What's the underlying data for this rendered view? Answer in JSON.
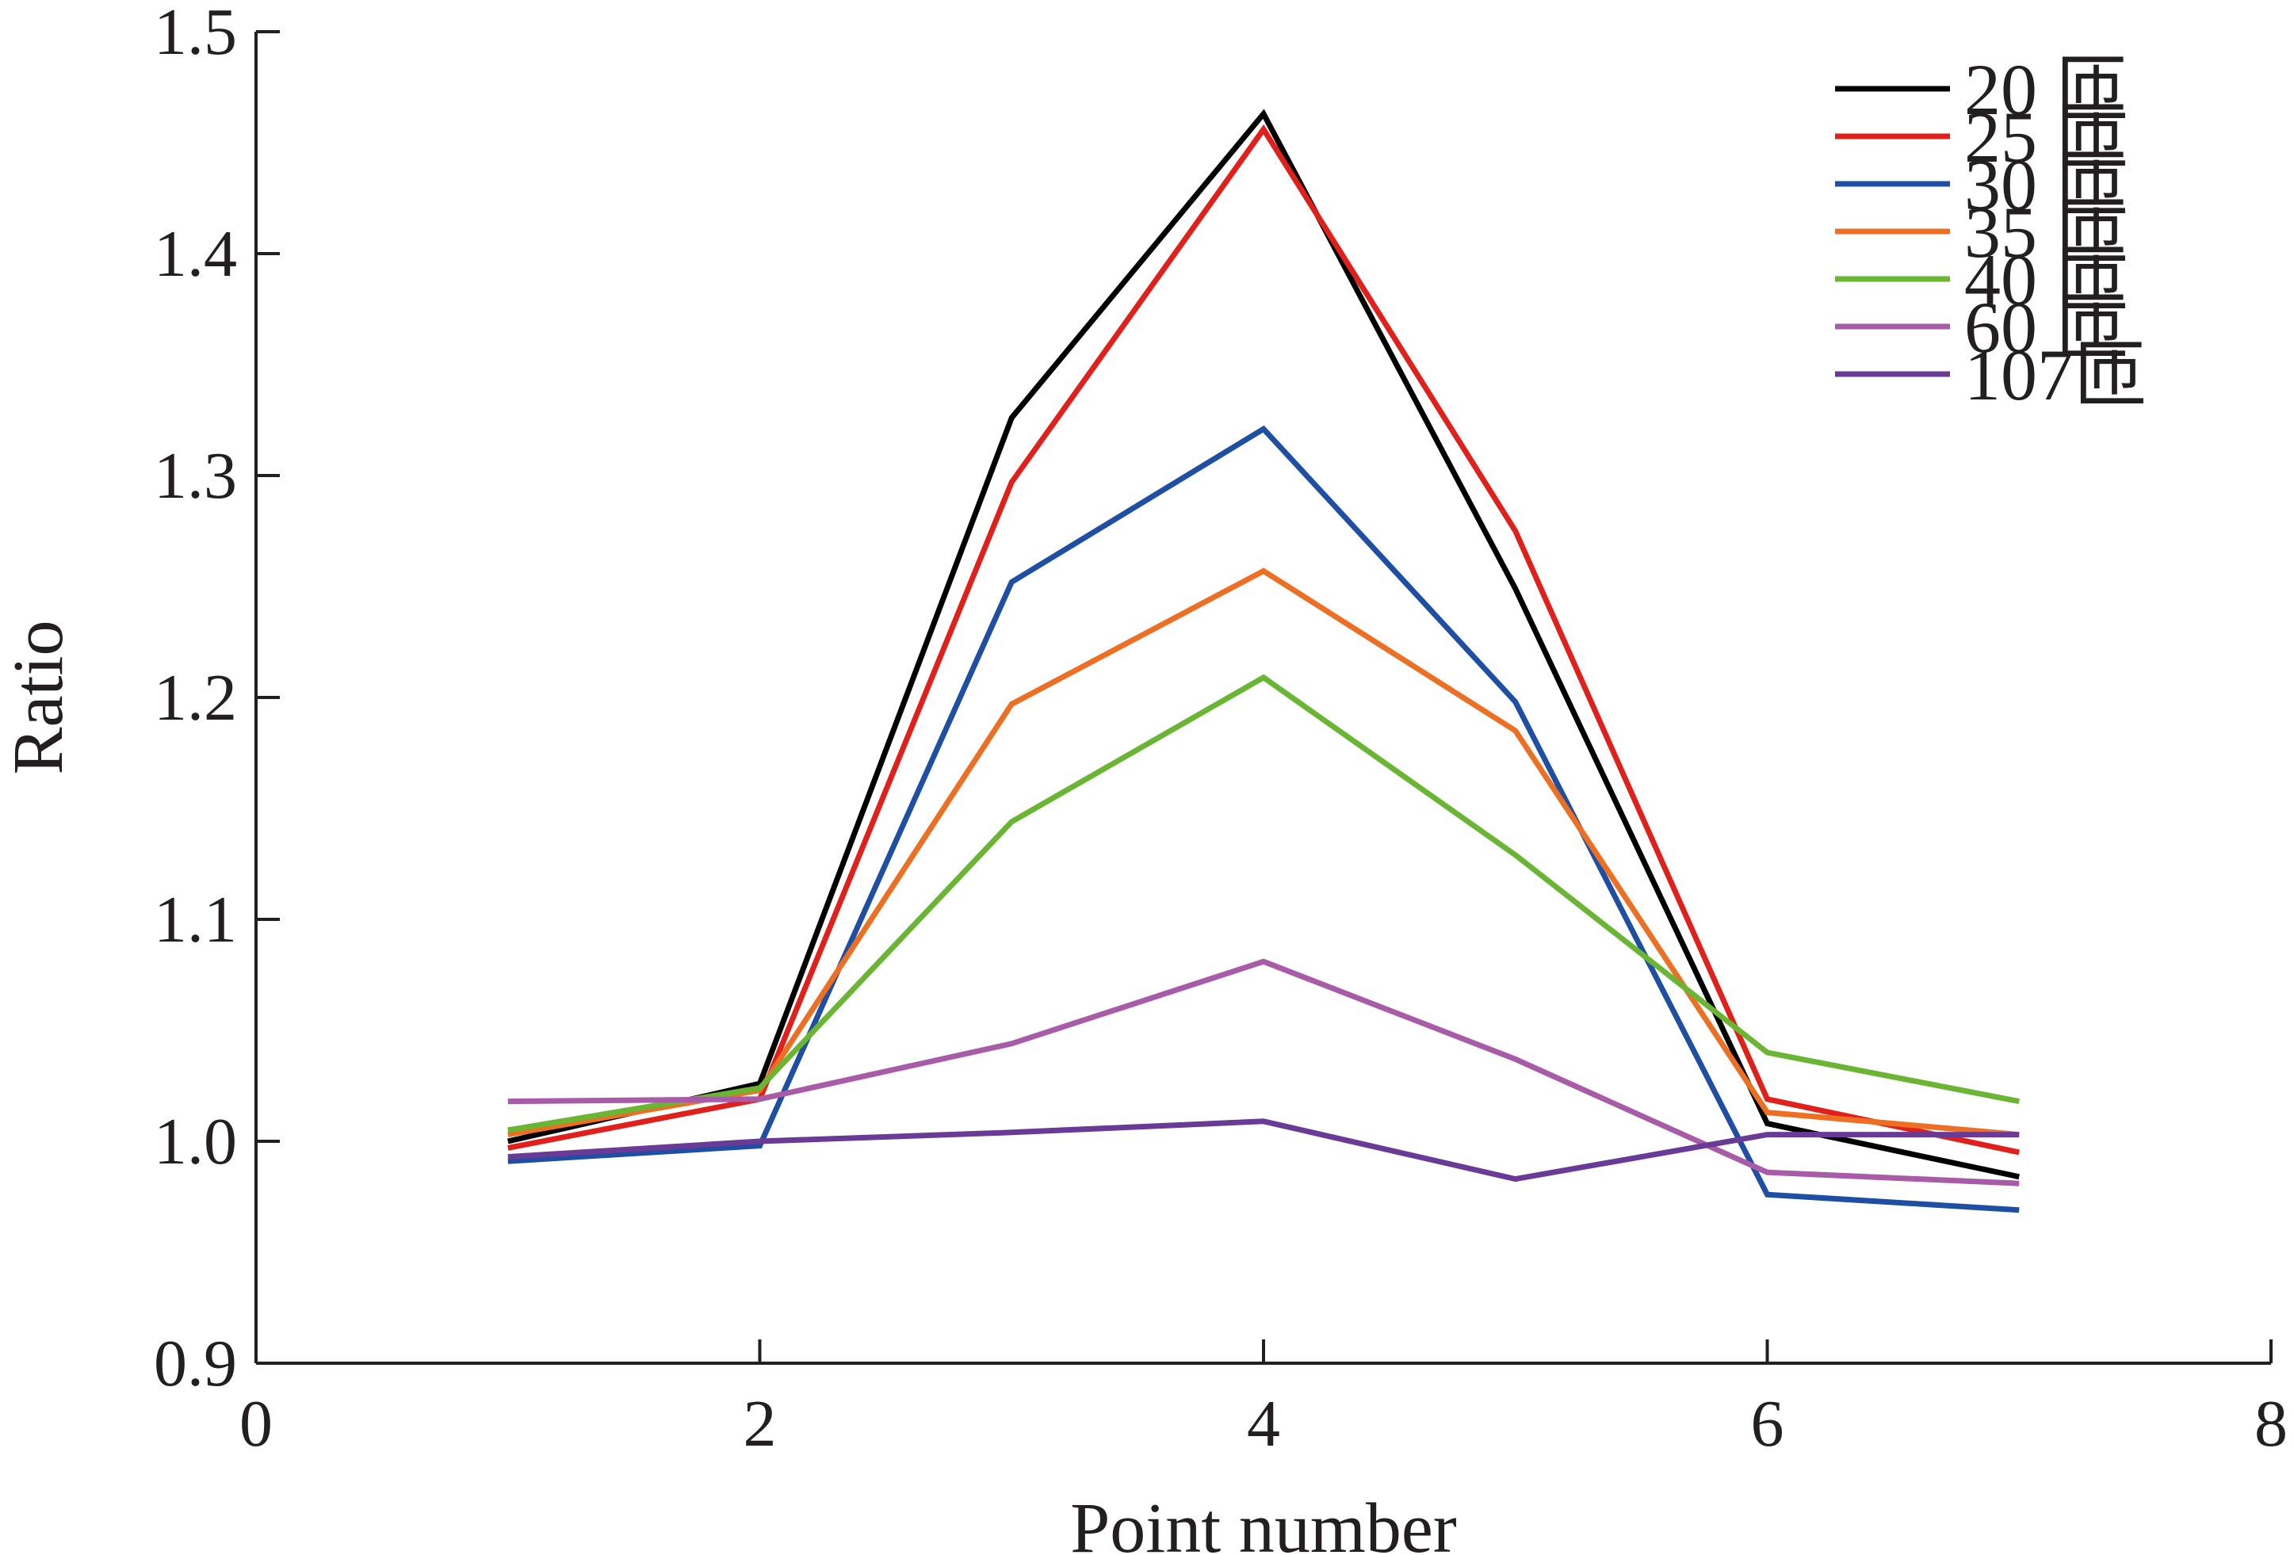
{
  "chart_data": {
    "type": "line",
    "title": "",
    "xlabel": "Point number",
    "ylabel": "Ratio",
    "xlim": [
      0,
      8
    ],
    "ylim": [
      0.9,
      1.5
    ],
    "xticks": [
      "0",
      "2",
      "4",
      "6",
      "8"
    ],
    "yticks": [
      "0.9",
      "1.0",
      "1.1",
      "1.2",
      "1.3",
      "1.4",
      "1.5"
    ],
    "grid": false,
    "legend_position": "top-right",
    "x": [
      1,
      2,
      3,
      4,
      5,
      6,
      7
    ],
    "series": [
      {
        "name": "20 匝",
        "color": "#000000",
        "values": [
          1.0,
          1.026,
          1.326,
          1.463,
          1.249,
          1.008,
          0.984
        ]
      },
      {
        "name": "25 匝",
        "color": "#e0201b",
        "values": [
          0.997,
          1.019,
          1.297,
          1.456,
          1.275,
          1.019,
          0.995
        ]
      },
      {
        "name": "30 匝",
        "color": "#1f4fa3",
        "values": [
          0.991,
          0.998,
          1.252,
          1.321,
          1.198,
          0.976,
          0.969
        ]
      },
      {
        "name": "35 匝",
        "color": "#ec6f24",
        "values": [
          1.003,
          1.023,
          1.197,
          1.257,
          1.185,
          1.013,
          1.003
        ]
      },
      {
        "name": "40 匝",
        "color": "#6ab634",
        "values": [
          1.005,
          1.024,
          1.144,
          1.209,
          1.129,
          1.04,
          1.018
        ]
      },
      {
        "name": "60 匝",
        "color": "#a85ca8",
        "values": [
          1.018,
          1.019,
          1.044,
          1.081,
          1.037,
          0.986,
          0.981
        ]
      },
      {
        "name": "107匝",
        "color": "#6a3a97",
        "values": [
          0.993,
          1.0,
          1.004,
          1.009,
          0.983,
          1.003,
          1.003
        ]
      }
    ]
  }
}
